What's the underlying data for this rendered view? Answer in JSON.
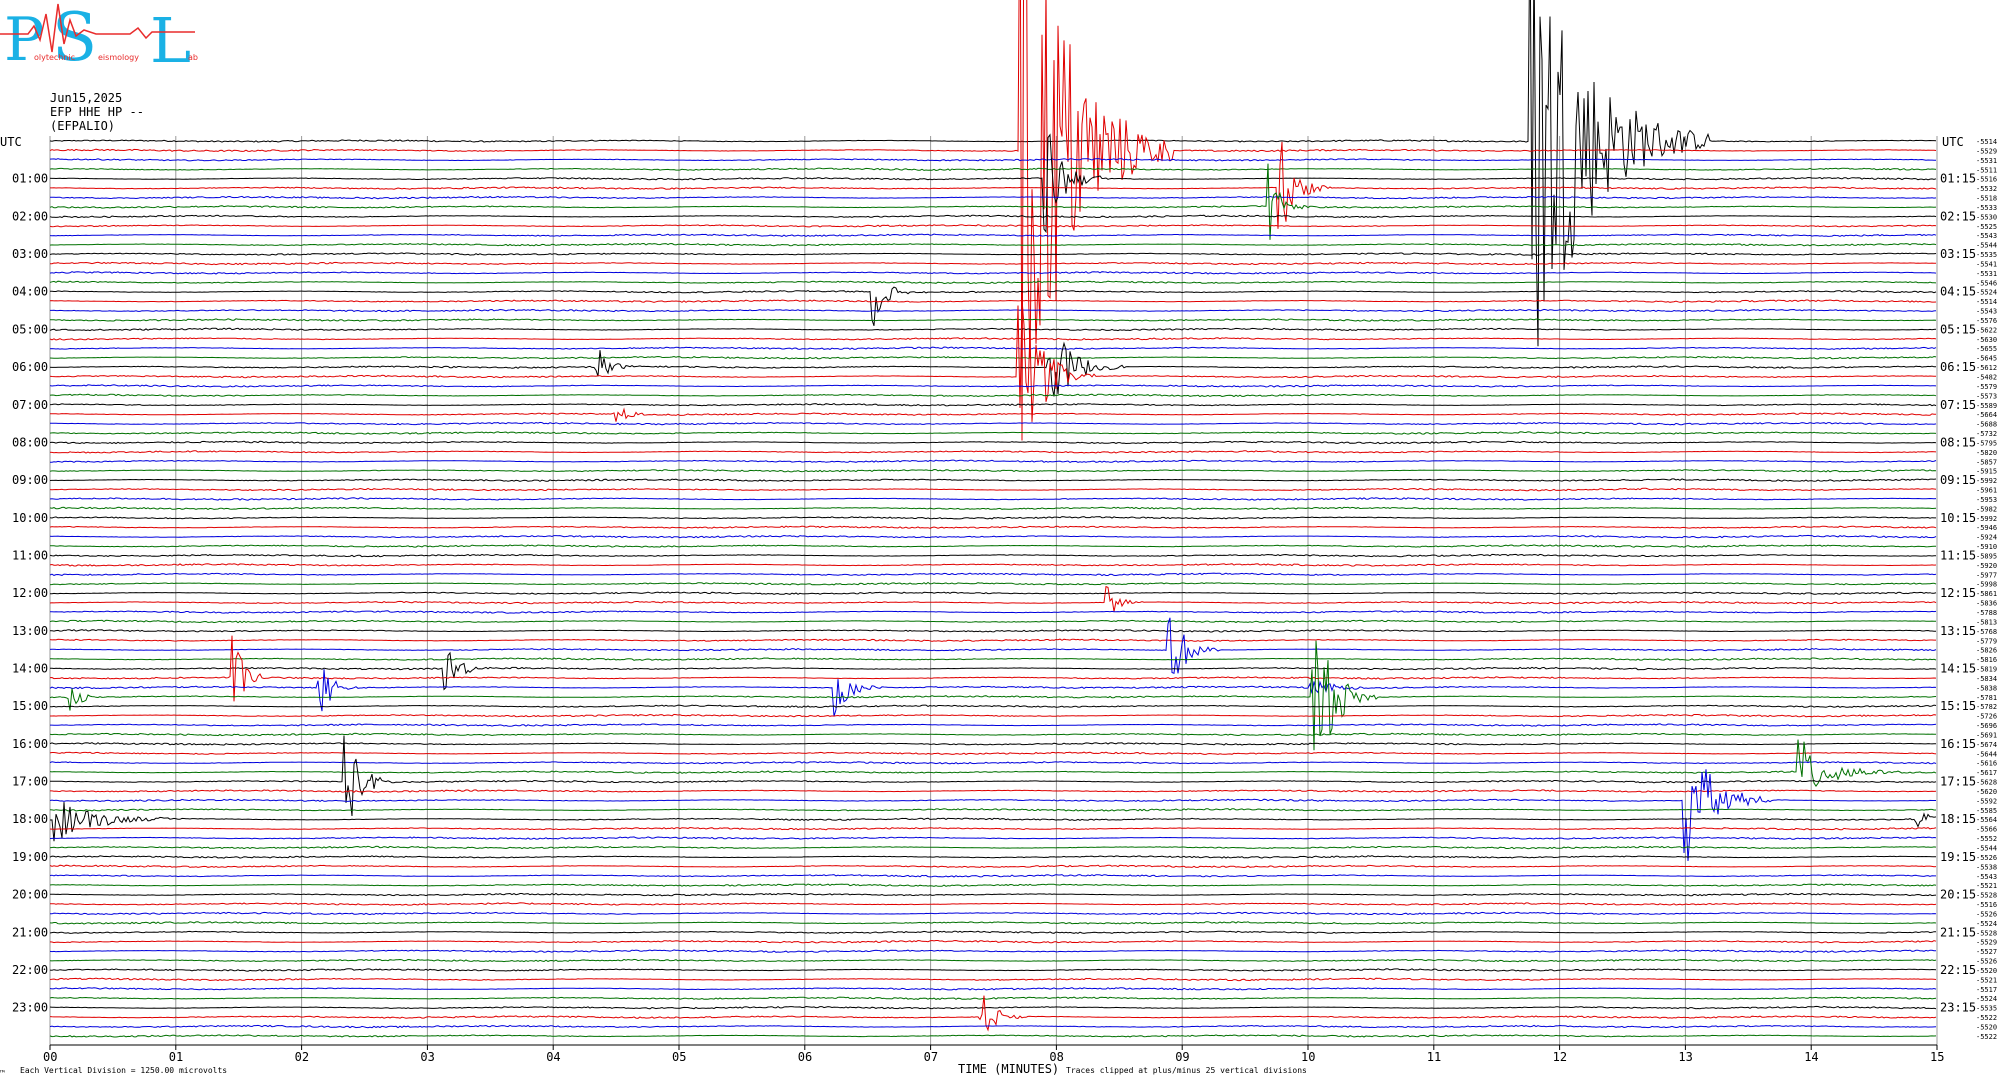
{
  "logo": {
    "big_letters": [
      "P",
      "S",
      "L"
    ],
    "small_words": [
      "olytechnic",
      "eismology",
      "ab"
    ],
    "colors": {
      "blue": "#1ab1e5",
      "red": "#e82c2c"
    }
  },
  "header": {
    "date": "Jun15,2025",
    "channel": "EFP HHE HP --",
    "station": "(EFPALIO)"
  },
  "axes": {
    "left_label": "UTC",
    "right_label": "UTC",
    "xlabel": "TIME (MINUTES)",
    "scale_note": "Each Vertical Division = 1250.00 microvolts",
    "clip_note": "Traces clipped at plus/minus 25 vertical divisions",
    "corner_mark": "™"
  },
  "chart_data": {
    "type": "line",
    "title": "",
    "x": {
      "label": "TIME (MINUTES)",
      "range": [
        0,
        15
      ],
      "ticks": [
        "00",
        "01",
        "02",
        "03",
        "04",
        "05",
        "06",
        "07",
        "08",
        "09",
        "10",
        "11",
        "12",
        "13",
        "14",
        "15"
      ]
    },
    "row_minutes": 15,
    "rows": 96,
    "grid": true,
    "color_cycle": [
      "#000000",
      "#e00000",
      "#0000dd",
      "#007000"
    ],
    "left_hours": [
      "01:00",
      "02:00",
      "03:00",
      "04:00",
      "05:00",
      "06:00",
      "07:00",
      "08:00",
      "09:00",
      "10:00",
      "11:00",
      "12:00",
      "13:00",
      "14:00",
      "15:00",
      "16:00",
      "17:00",
      "18:00",
      "19:00",
      "20:00",
      "21:00",
      "22:00",
      "23:00"
    ],
    "right_labels": [
      "01:15",
      "02:15",
      "03:15",
      "04:15",
      "05:15",
      "06:15",
      "07:15",
      "08:15",
      "09:15",
      "10:15",
      "11:15",
      "12:15",
      "13:15",
      "14:15",
      "15:15",
      "16:15",
      "17:15",
      "18:15",
      "19:15",
      "20:15",
      "21:15",
      "22:15",
      "23:15"
    ],
    "row_offsets": [
      "-5514",
      "-5529",
      "-5531",
      "-5511",
      "-5516",
      "-5532",
      "-5518",
      "-5533",
      "-5530",
      "-5525",
      "-5543",
      "-5544",
      "-5535",
      "-5541",
      "-5531",
      "-5546",
      "-5524",
      "-5514",
      "-5543",
      "-5576",
      "-5622",
      "-5630",
      "-5655",
      "-5645",
      "-5612",
      "-5482",
      "-5579",
      "-5573",
      "-5589",
      "-5664",
      "-5688",
      "-5732",
      "-5795",
      "-5820",
      "-5857",
      "-5915",
      "-5992",
      "-5961",
      "-5953",
      "-5982",
      "-5992",
      "-5946",
      "-5924",
      "-5910",
      "-5895",
      "-5920",
      "-5977",
      "-5998",
      "-5861",
      "-5836",
      "-5788",
      "-5813",
      "-5768",
      "-5779",
      "-5826",
      "-5816",
      "-5819",
      "-5834",
      "-5838",
      "-5781",
      "-5782",
      "-5726",
      "-5696",
      "-5691",
      "-5674",
      "-5644",
      "-5616",
      "-5617",
      "-5628",
      "-5620",
      "-5592",
      "-5585",
      "-5564",
      "-5566",
      "-5552",
      "-5544",
      "-5526",
      "-5538",
      "-5543",
      "-5521",
      "-5528",
      "-5516",
      "-5526",
      "-5524",
      "-5528",
      "-5529",
      "-5527",
      "-5526",
      "-5520",
      "-5521",
      "-5517",
      "-5524",
      "-5535",
      "-5522",
      "-5520",
      "-5522"
    ],
    "events": [
      {
        "row": 0,
        "minute": 11.78,
        "amplitude": 28,
        "duration": 1.4
      },
      {
        "row": 1,
        "minute": 7.72,
        "amplitude": 40,
        "duration": 1.2
      },
      {
        "row": 4,
        "minute": 7.92,
        "amplitude": 6,
        "duration": 0.5
      },
      {
        "row": 5,
        "minute": 9.78,
        "amplitude": 6,
        "duration": 0.4
      },
      {
        "row": 7,
        "minute": 9.7,
        "amplitude": 4,
        "duration": 0.3
      },
      {
        "row": 16,
        "minute": 6.55,
        "amplitude": 4,
        "duration": 0.3
      },
      {
        "row": 24,
        "minute": 4.35,
        "amplitude": 2.5,
        "duration": 0.3
      },
      {
        "row": 24,
        "minute": 7.95,
        "amplitude": 5,
        "duration": 0.6
      },
      {
        "row": 25,
        "minute": 7.7,
        "amplitude": 10,
        "duration": 0.6
      },
      {
        "row": 29,
        "minute": 4.5,
        "amplitude": 1.2,
        "duration": 0.3
      },
      {
        "row": 49,
        "minute": 8.4,
        "amplitude": 2,
        "duration": 0.3
      },
      {
        "row": 54,
        "minute": 8.9,
        "amplitude": 5,
        "duration": 0.4
      },
      {
        "row": 56,
        "minute": 3.15,
        "amplitude": 2.5,
        "duration": 0.4
      },
      {
        "row": 57,
        "minute": 1.45,
        "amplitude": 5,
        "duration": 0.3
      },
      {
        "row": 58,
        "minute": 2.15,
        "amplitude": 3.5,
        "duration": 0.3
      },
      {
        "row": 58,
        "minute": 6.25,
        "amplitude": 3,
        "duration": 0.4
      },
      {
        "row": 58,
        "minute": 10.0,
        "amplitude": 1.3,
        "duration": 0.6
      },
      {
        "row": 59,
        "minute": 0.15,
        "amplitude": 2,
        "duration": 0.3
      },
      {
        "row": 59,
        "minute": 10.05,
        "amplitude": 10,
        "duration": 0.5
      },
      {
        "row": 67,
        "minute": 13.9,
        "amplitude": 4,
        "duration": 0.8
      },
      {
        "row": 68,
        "minute": 2.35,
        "amplitude": 6,
        "duration": 0.4
      },
      {
        "row": 70,
        "minute": 13.0,
        "amplitude": 8,
        "duration": 0.7
      },
      {
        "row": 72,
        "minute": 0.05,
        "amplitude": 2.5,
        "duration": 1.0
      },
      {
        "row": 72,
        "minute": 14.85,
        "amplitude": 1.5,
        "duration": 0.3
      },
      {
        "row": 93,
        "minute": 7.4,
        "amplitude": 3,
        "duration": 0.4
      }
    ]
  }
}
